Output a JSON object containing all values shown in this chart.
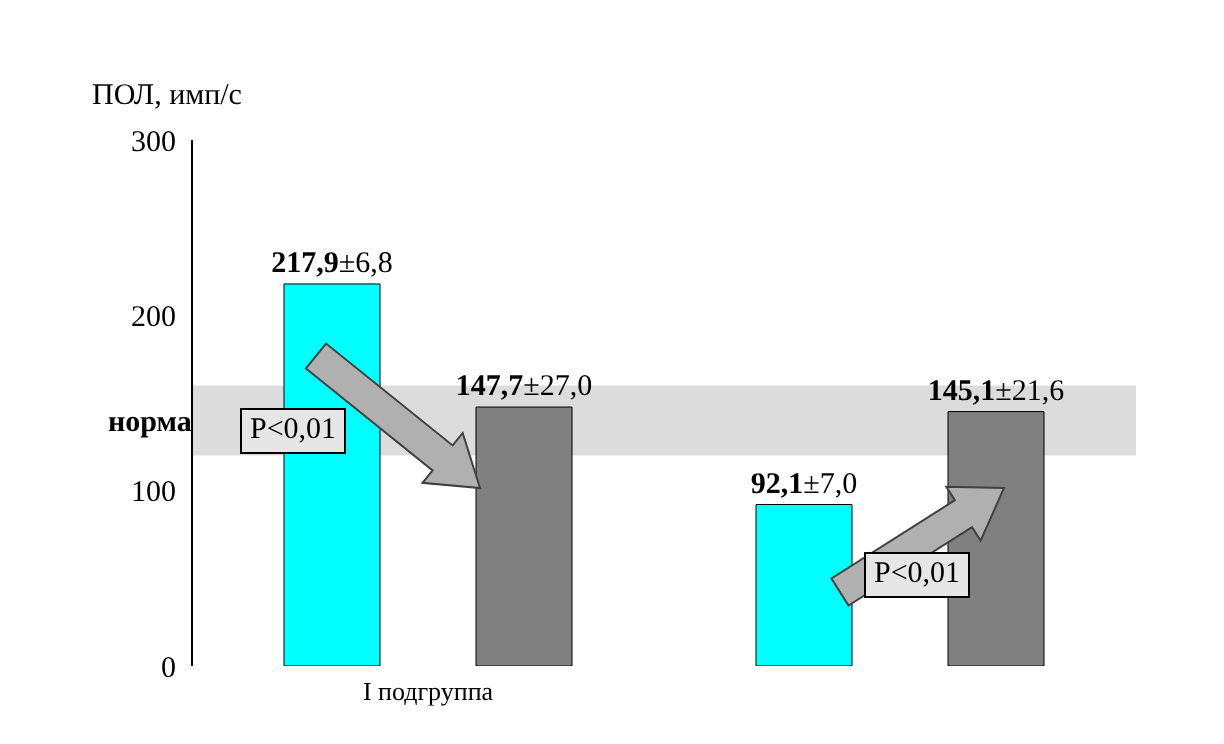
{
  "chart_data": {
    "type": "bar",
    "ylabel": "ПОЛ, имп/с",
    "categories": [
      "I подгруппа",
      null
    ],
    "series": [
      {
        "color": "#00ffff",
        "values": [
          217.9,
          92.1
        ],
        "value_labels": [
          "217,9±6,8",
          "92,1±7,0"
        ]
      },
      {
        "color": "#808080",
        "values": [
          147.7,
          145.1
        ],
        "value_labels": [
          "147,7±27,0",
          "145,1±21,6"
        ]
      }
    ],
    "ylim": [
      0,
      300
    ],
    "yticks": [
      0,
      100,
      200,
      300
    ],
    "bands": [
      {
        "axis": "y",
        "from": 120,
        "to": 160,
        "label": "норма",
        "color": "#dcdcdc"
      }
    ],
    "annotations": [
      "P<0,01",
      "P<0,01"
    ]
  }
}
